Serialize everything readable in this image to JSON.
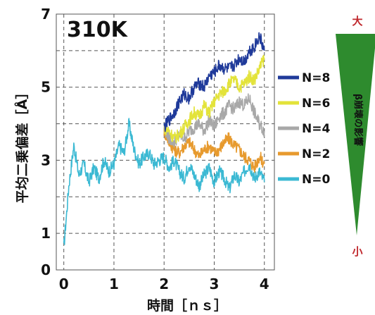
{
  "chart_data": {
    "type": "line",
    "title": "310K",
    "xlabel": "時間［ｎｓ］",
    "ylabel": "平均二乗偏差［Å］",
    "xlim": [
      -0.15,
      4.2
    ],
    "ylim": [
      0,
      7
    ],
    "x_ticks": [
      "0",
      "1",
      "2",
      "3",
      "4"
    ],
    "y_ticks": [
      "0",
      "1",
      "3",
      "5",
      "7"
    ],
    "grid": true,
    "legend_position": "right",
    "series": [
      {
        "name": "N=8",
        "color": "#1f3a9a",
        "x": [
          2.0,
          2.1,
          2.2,
          2.3,
          2.4,
          2.5,
          2.6,
          2.7,
          2.8,
          2.9,
          3.0,
          3.1,
          3.2,
          3.3,
          3.4,
          3.5,
          3.6,
          3.7,
          3.8,
          3.9,
          4.0
        ],
        "y": [
          3.9,
          4.1,
          4.3,
          4.6,
          4.8,
          4.7,
          5.0,
          5.1,
          5.0,
          5.3,
          5.4,
          5.6,
          5.5,
          5.5,
          5.6,
          5.8,
          5.7,
          6.0,
          6.1,
          6.4,
          6.0
        ]
      },
      {
        "name": "N=6",
        "color": "#e3e33a",
        "x": [
          2.0,
          2.1,
          2.2,
          2.3,
          2.4,
          2.5,
          2.6,
          2.7,
          2.8,
          2.9,
          3.0,
          3.1,
          3.2,
          3.3,
          3.4,
          3.5,
          3.6,
          3.7,
          3.8,
          3.9,
          4.0
        ],
        "y": [
          3.9,
          3.8,
          3.6,
          3.7,
          3.9,
          4.1,
          4.3,
          4.2,
          4.5,
          4.3,
          4.6,
          4.8,
          4.9,
          5.1,
          5.2,
          5.0,
          5.1,
          5.3,
          5.2,
          5.5,
          5.8
        ]
      },
      {
        "name": "N=4",
        "color": "#a8a8a8",
        "x": [
          2.0,
          2.1,
          2.2,
          2.3,
          2.4,
          2.5,
          2.6,
          2.7,
          2.8,
          2.9,
          3.0,
          3.1,
          3.2,
          3.3,
          3.4,
          3.5,
          3.6,
          3.7,
          3.8,
          3.9,
          4.0
        ],
        "y": [
          3.9,
          3.6,
          3.5,
          3.7,
          3.6,
          3.8,
          3.9,
          4.0,
          3.8,
          4.1,
          3.9,
          4.2,
          4.3,
          4.5,
          4.4,
          4.6,
          4.5,
          4.7,
          4.3,
          4.0,
          3.8
        ]
      },
      {
        "name": "N=2",
        "color": "#e79a2e",
        "x": [
          2.0,
          2.1,
          2.2,
          2.3,
          2.4,
          2.5,
          2.6,
          2.7,
          2.8,
          2.9,
          3.0,
          3.1,
          3.2,
          3.3,
          3.4,
          3.5,
          3.6,
          3.7,
          3.8,
          3.9,
          4.0
        ],
        "y": [
          3.8,
          3.5,
          3.3,
          3.2,
          3.4,
          3.5,
          3.3,
          3.1,
          3.3,
          3.4,
          3.2,
          3.3,
          3.5,
          3.6,
          3.4,
          3.3,
          3.1,
          3.0,
          2.8,
          3.1,
          2.9
        ]
      },
      {
        "name": "N=0",
        "color": "#3bb9d3",
        "x": [
          0.0,
          0.1,
          0.2,
          0.3,
          0.4,
          0.5,
          0.6,
          0.7,
          0.8,
          0.9,
          1.0,
          1.1,
          1.2,
          1.3,
          1.4,
          1.5,
          1.6,
          1.7,
          1.8,
          1.9,
          2.0,
          2.1,
          2.2,
          2.3,
          2.4,
          2.5,
          2.6,
          2.7,
          2.8,
          2.9,
          3.0,
          3.1,
          3.2,
          3.3,
          3.4,
          3.5,
          3.6,
          3.7,
          3.8,
          3.9,
          4.0
        ],
        "y": [
          0.6,
          2.3,
          3.4,
          2.6,
          2.9,
          2.4,
          2.8,
          2.5,
          3.0,
          2.7,
          2.9,
          3.4,
          3.2,
          4.0,
          3.3,
          2.9,
          3.1,
          3.2,
          2.9,
          3.0,
          3.1,
          2.8,
          3.0,
          2.7,
          2.5,
          2.9,
          2.6,
          2.3,
          2.6,
          2.8,
          2.4,
          2.7,
          2.5,
          2.2,
          2.6,
          2.4,
          2.7,
          2.9,
          2.5,
          2.7,
          2.4
        ]
      }
    ]
  },
  "scale_bar": {
    "top_label": "大",
    "bottom_label": "小",
    "caption": "β崩壊の影響",
    "color": "#2e8b2e"
  }
}
